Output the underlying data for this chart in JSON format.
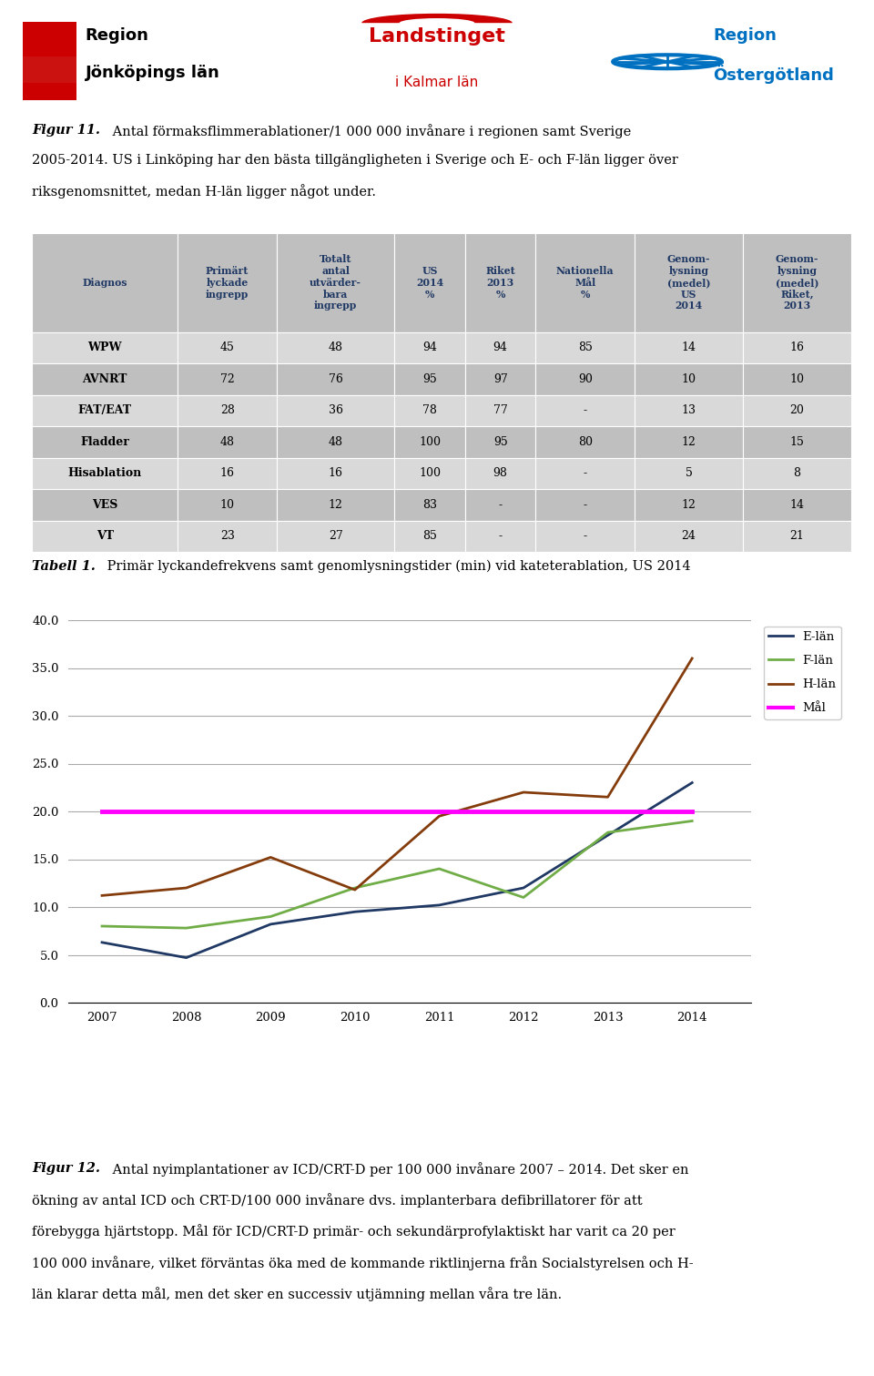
{
  "fig11_bold": "Figur 11.",
  "fig11_line1_rest": " Antal förmaksflimmerablationer/1 000 000 invånare i regionen samt Sverige",
  "fig11_line2": "2005-2014. US i Linköping har den bästa tillgängligheten i Sverige och E- och F-län ligger över",
  "fig11_line3": "riksgenomsnittet, medan H-län ligger något under.",
  "table_header": [
    "Diagnos",
    "Primärt\nlyckade\ningrepp",
    "Totalt\nantal\nutvärder-\nbara\ningrepp",
    "US\n2014\n%",
    "Riket\n2013\n%",
    "Nationella\nMål\n%",
    "Genom-\nlysning\n(medel)\nUS\n2014",
    "Genom-\nlysning\n(medel)\nRiket,\n2013"
  ],
  "table_rows": [
    [
      "WPW",
      "45",
      "48",
      "94",
      "94",
      "85",
      "14",
      "16"
    ],
    [
      "AVNRT",
      "72",
      "76",
      "95",
      "97",
      "90",
      "10",
      "10"
    ],
    [
      "FAT/EAT",
      "28",
      "36",
      "78",
      "77",
      "-",
      "13",
      "20"
    ],
    [
      "Fladder",
      "48",
      "48",
      "100",
      "95",
      "80",
      "12",
      "15"
    ],
    [
      "Hisablation",
      "16",
      "16",
      "100",
      "98",
      "-",
      "5",
      "8"
    ],
    [
      "VES",
      "10",
      "12",
      "83",
      "-",
      "-",
      "12",
      "14"
    ],
    [
      "VT",
      "23",
      "27",
      "85",
      "-",
      "-",
      "24",
      "21"
    ]
  ],
  "tabell1_bold": "Tabell 1.",
  "tabell1_text": " Primär lyckandefrekvens samt genomlysningstider (min) vid kateterablation, US 2014",
  "years": [
    2007,
    2008,
    2009,
    2010,
    2011,
    2012,
    2013,
    2014
  ],
  "e_lan": [
    6.3,
    4.7,
    8.2,
    9.5,
    10.2,
    12.0,
    17.5,
    23.0
  ],
  "f_lan": [
    8.0,
    7.8,
    9.0,
    12.0,
    14.0,
    11.0,
    17.8,
    19.0
  ],
  "h_lan": [
    11.2,
    12.0,
    15.2,
    11.8,
    19.5,
    22.0,
    21.5,
    36.0
  ],
  "mal": [
    20.0,
    20.0,
    20.0,
    20.0,
    20.0,
    20.0,
    20.0,
    20.0
  ],
  "e_lan_color": "#1F3864",
  "f_lan_color": "#70AD47",
  "h_lan_color": "#843C0C",
  "mal_color": "#FF00FF",
  "fig12_bold": "Figur 12.",
  "fig12_line1_rest": " Antal nyimplantationer av ICD/CRT-D per 100 000 invånare 2007 – 2014. Det sker en",
  "fig12_line2": "ökning av antal ICD och CRT-D/100 000 invånare dvs. implanterbara defibrillatorer för att",
  "fig12_line3": "förebygga hjärtstopp. Mål för ICD/CRT-D primär- och sekundärprofylaktiskt har varit ca 20 per",
  "fig12_line4": "100 000 invånare, vilket förväntas öka med de kommande riktlinjerna från Socialstyrelsen och H-",
  "fig12_line5": "län klarar detta mål, men det sker en successiv utjämning mellan våra tre län.",
  "ylim": [
    0,
    40
  ],
  "yticks": [
    0.0,
    5.0,
    10.0,
    15.0,
    20.0,
    25.0,
    30.0,
    35.0,
    40.0
  ],
  "header_bg": "#BFBFBF",
  "row_bg_light": "#D9D9D9",
  "row_bg_dark": "#BFBFBF",
  "table_text_color": "#000000",
  "header_text_color": "#1F3864",
  "logo1_text1": "Region",
  "logo1_text2": "Jönköpings län",
  "logo2_text1": "Landstinget",
  "logo2_text2": "i Kalmar län",
  "logo3_text1": "Region",
  "logo3_text2": "Östergötland"
}
